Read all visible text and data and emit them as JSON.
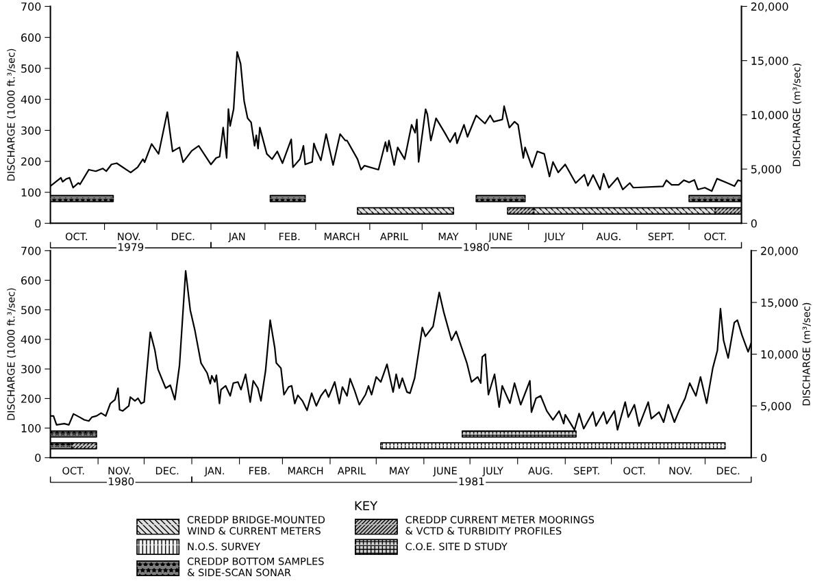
{
  "chart_data": [
    {
      "type": "line",
      "ylabel": "DISCHARGE (1000 ft.³/sec)",
      "y2label": "DISCHARGE (m³/sec)",
      "xlim": [
        "1979-10-01",
        "1980-10-31"
      ],
      "xticks": [
        {
          "value": "1979-10-16",
          "label": "OCT."
        },
        {
          "value": "1979-11-01",
          "label": null
        },
        {
          "value": "1979-11-15",
          "label": "NOV."
        },
        {
          "value": "1979-12-01",
          "label": null
        },
        {
          "value": "1979-12-16",
          "label": "DEC."
        },
        {
          "value": "1980-01-01",
          "label": null
        },
        {
          "value": "1980-01-16",
          "label": "JAN"
        },
        {
          "value": "1980-02-01",
          "label": null
        },
        {
          "value": "1980-02-15",
          "label": "FEB."
        },
        {
          "value": "1980-03-01",
          "label": null
        },
        {
          "value": "1980-03-16",
          "label": "MARCH"
        },
        {
          "value": "1980-04-01",
          "label": null
        },
        {
          "value": "1980-04-15",
          "label": "APRIL"
        },
        {
          "value": "1980-05-01",
          "label": null
        },
        {
          "value": "1980-05-16",
          "label": "MAY"
        },
        {
          "value": "1980-06-01",
          "label": null
        },
        {
          "value": "1980-06-15",
          "label": "JUNE"
        },
        {
          "value": "1980-07-01",
          "label": null
        },
        {
          "value": "1980-07-16",
          "label": "JULY"
        },
        {
          "value": "1980-08-01",
          "label": null
        },
        {
          "value": "1980-08-16",
          "label": "AUG."
        },
        {
          "value": "1980-09-01",
          "label": null
        },
        {
          "value": "1980-09-15",
          "label": "SEPT."
        },
        {
          "value": "1980-10-01",
          "label": null
        },
        {
          "value": "1980-10-16",
          "label": "OCT."
        }
      ],
      "ylim": [
        0,
        700
      ],
      "yticks": [
        0,
        100,
        200,
        300,
        400,
        500,
        600,
        700
      ],
      "y2lim": [
        0,
        20000
      ],
      "y2ticks": [
        0,
        {
          "value": 5000,
          "label": "5,000"
        },
        {
          "value": 10000,
          "label": "10,000"
        },
        {
          "value": 15000,
          "label": "15,000"
        },
        {
          "value": 20000,
          "label": "20,000"
        }
      ],
      "annotations": [
        "1979",
        "1980"
      ],
      "series": [
        {
          "color": "#000000",
          "x": [
            "1979-10-01",
            "1979-10-07",
            "1979-10-08",
            "1979-10-10",
            "1979-10-12",
            "1979-10-14",
            "1979-10-17",
            "1979-10-18",
            "1979-10-23",
            "1979-10-27",
            "1979-10-31",
            "1979-11-02",
            "1979-11-05",
            "1979-11-08",
            "1979-11-16",
            "1979-11-20",
            "1979-11-23",
            "1979-11-24",
            "1979-11-28",
            "1979-12-02",
            "1979-12-07",
            "1979-12-10",
            "1979-12-14",
            "1979-12-16",
            "1979-12-21",
            "1979-12-25",
            "1980-01-01",
            "1980-01-04",
            "1980-01-06",
            "1980-01-08",
            "1980-01-10",
            "1980-01-11",
            "1980-01-12",
            "1980-01-14",
            "1980-01-16",
            "1980-01-18",
            "1980-01-20",
            "1980-01-22",
            "1980-01-24",
            "1980-01-26",
            "1980-01-27",
            "1980-01-28",
            "1980-01-29",
            "1980-02-02",
            "1980-02-05",
            "1980-02-08",
            "1980-02-11",
            "1980-02-16",
            "1980-02-17",
            "1980-02-21",
            "1980-02-23",
            "1980-02-24",
            "1980-02-28",
            "1980-02-29",
            "1980-03-01",
            "1980-03-04",
            "1980-03-07",
            "1980-03-11",
            "1980-03-15",
            "1980-03-18",
            "1980-03-19",
            "1980-03-25",
            "1980-03-27",
            "1980-03-29",
            "1980-04-06",
            "1980-04-10",
            "1980-04-11",
            "1980-04-12",
            "1980-04-15",
            "1980-04-17",
            "1980-04-21",
            "1980-04-25",
            "1980-04-27",
            "1980-04-28",
            "1980-04-29",
            "1980-05-03",
            "1980-05-04",
            "1980-05-06",
            "1980-05-09",
            "1980-05-14",
            "1980-05-17",
            "1980-05-20",
            "1980-05-21",
            "1980-05-25",
            "1980-05-27",
            "1980-06-01",
            "1980-06-06",
            "1980-06-09",
            "1980-06-11",
            "1980-06-16",
            "1980-06-17",
            "1980-06-20",
            "1980-06-23",
            "1980-06-25",
            "1980-06-28",
            "1980-06-29",
            "1980-07-03",
            "1980-07-06",
            "1980-07-10",
            "1980-07-13",
            "1980-07-15",
            "1980-07-18",
            "1980-07-22",
            "1980-07-28",
            "1980-08-02",
            "1980-08-04",
            "1980-08-07",
            "1980-08-11",
            "1980-08-13",
            "1980-08-16",
            "1980-08-21",
            "1980-08-24",
            "1980-08-28",
            "1980-08-30",
            "1980-09-16",
            "1980-09-18",
            "1980-09-21",
            "1980-09-25",
            "1980-09-28",
            "1980-10-01",
            "1980-10-04",
            "1980-10-06",
            "1980-10-10",
            "1980-10-14",
            "1980-10-17",
            "1980-10-23",
            "1980-10-27",
            "1980-10-29",
            "1980-10-31"
          ],
          "values": [
            120,
            147,
            134,
            143,
            147,
            115,
            130,
            126,
            173,
            168,
            177,
            168,
            190,
            194,
            164,
            181,
            207,
            197,
            256,
            224,
            359,
            232,
            245,
            197,
            234,
            250,
            190,
            211,
            215,
            309,
            211,
            369,
            314,
            369,
            553,
            515,
            395,
            339,
            326,
            250,
            284,
            241,
            309,
            224,
            207,
            232,
            194,
            271,
            181,
            207,
            250,
            190,
            198,
            258,
            241,
            203,
            288,
            188,
            288,
            267,
            267,
            207,
            173,
            186,
            173,
            262,
            232,
            267,
            188,
            245,
            207,
            318,
            292,
            335,
            198,
            368,
            352,
            267,
            339,
            292,
            262,
            292,
            258,
            318,
            279,
            348,
            322,
            348,
            328,
            335,
            378,
            309,
            328,
            318,
            211,
            245,
            181,
            232,
            224,
            151,
            198,
            164,
            190,
            130,
            157,
            121,
            156,
            109,
            160,
            115,
            147,
            109,
            130,
            115,
            119,
            139,
            124,
            124,
            139,
            132,
            140,
            109,
            115,
            104,
            144,
            130,
            120,
            139,
            136
          ]
        },
        {
          "color": "#808080",
          "x": [
            "1979-10-01",
            "1979-11-06",
            null,
            "1980-02-04",
            "1980-02-24",
            null,
            "1980-06-01",
            "1980-06-29",
            null,
            "1980-10-01",
            "1980-10-31"
          ],
          "values": [
            80,
            80,
            null,
            80,
            80,
            null,
            80,
            80,
            null,
            80,
            80
          ],
          "lower": [
            70,
            70,
            null,
            70,
            70,
            null,
            70,
            70,
            null,
            70,
            70
          ],
          "upper": [
            90,
            90,
            null,
            90,
            90,
            null,
            90,
            90,
            null,
            90,
            90
          ]
        },
        {
          "name": "CREDDP BRIDGE-MOUNTED WIND & CURRENT METERS",
          "color": "#e0e0e0",
          "x": [
            "1980-03-25",
            "1980-05-19",
            null,
            "1980-07-04",
            "1980-10-16"
          ],
          "values": [
            40,
            40,
            null,
            40,
            40
          ],
          "lower": [
            30,
            30,
            null,
            30,
            30
          ],
          "upper": [
            50,
            50,
            null,
            50,
            50
          ]
        },
        {
          "color": "#bfbfbf",
          "x": [
            "1980-06-19",
            "1980-07-04",
            null,
            "1980-10-16",
            "1980-10-31"
          ],
          "values": [
            40,
            40,
            null,
            40,
            40
          ],
          "lower": [
            30,
            30,
            null,
            30,
            30
          ],
          "upper": [
            50,
            50,
            null,
            50,
            50
          ]
        }
      ]
    },
    {
      "type": "line",
      "ylabel": "DISCHARGE (1000 ft.³/sec)",
      "y2label": "DISCHARGE (m³/sec)",
      "legend": "bottom",
      "legend_title": "KEY",
      "xlim": [
        "1980-10-01",
        "1981-12-31"
      ],
      "xticks": [
        {
          "value": "1980-10-16",
          "label": "OCT."
        },
        {
          "value": "1980-11-01",
          "label": null
        },
        {
          "value": "1980-11-15",
          "label": "NOV."
        },
        {
          "value": "1980-12-01",
          "label": null
        },
        {
          "value": "1980-12-16",
          "label": "DEC."
        },
        {
          "value": "1981-01-01",
          "label": null
        },
        {
          "value": "1981-01-16",
          "label": "JAN."
        },
        {
          "value": "1981-02-01",
          "label": null
        },
        {
          "value": "1981-02-14",
          "label": "FEB."
        },
        {
          "value": "1981-03-01",
          "label": null
        },
        {
          "value": "1981-03-16",
          "label": "MARCH"
        },
        {
          "value": "1981-04-01",
          "label": null
        },
        {
          "value": "1981-04-15",
          "label": "APRIL"
        },
        {
          "value": "1981-05-01",
          "label": null
        },
        {
          "value": "1981-05-16",
          "label": "MAY"
        },
        {
          "value": "1981-06-01",
          "label": null
        },
        {
          "value": "1981-06-15",
          "label": "JUNE"
        },
        {
          "value": "1981-07-01",
          "label": null
        },
        {
          "value": "1981-07-16",
          "label": "JULY"
        },
        {
          "value": "1981-08-01",
          "label": null
        },
        {
          "value": "1981-08-16",
          "label": "AUG."
        },
        {
          "value": "1981-09-01",
          "label": null
        },
        {
          "value": "1981-09-15",
          "label": "SEPT."
        },
        {
          "value": "1981-10-01",
          "label": null
        },
        {
          "value": "1981-10-16",
          "label": "OCT."
        },
        {
          "value": "1981-11-01",
          "label": null
        },
        {
          "value": "1981-11-15",
          "label": "NOV."
        },
        {
          "value": "1981-12-01",
          "label": null
        },
        {
          "value": "1981-12-16",
          "label": "DEC."
        }
      ],
      "ylim": [
        0,
        700
      ],
      "yticks": [
        0,
        100,
        200,
        300,
        400,
        500,
        600,
        700
      ],
      "y2lim": [
        0,
        20000
      ],
      "y2ticks": [
        0,
        {
          "value": 5000,
          "label": "5,000"
        },
        {
          "value": 10000,
          "label": "10,000"
        },
        {
          "value": 15000,
          "label": "15,000"
        },
        {
          "value": 20000,
          "label": "20,000"
        }
      ],
      "annotations": [
        "1980",
        "1981"
      ],
      "series": [
        {
          "color": "#000000",
          "x": [
            "1980-10-01",
            "1980-10-03",
            "1980-10-05",
            "1980-10-10",
            "1980-10-13",
            "1980-10-16",
            "1980-10-20",
            "1980-10-23",
            "1980-10-26",
            "1980-10-28",
            "1980-10-31",
            "1980-11-03",
            "1980-11-06",
            "1980-11-09",
            "1980-11-12",
            "1980-11-14",
            "1980-11-15",
            "1980-11-17",
            "1980-11-21",
            "1980-11-22",
            "1980-11-25",
            "1980-11-27",
            "1980-11-29",
            "1980-12-01",
            "1980-12-05",
            "1980-12-08",
            "1980-12-10",
            "1980-12-15",
            "1980-12-18",
            "1980-12-21",
            "1980-12-24",
            "1980-12-28",
            "1980-12-31",
            "1981-01-03",
            "1981-01-07",
            "1981-01-11",
            "1981-01-13",
            "1981-01-14",
            "1981-01-16",
            "1981-01-17",
            "1981-01-19",
            "1981-01-20",
            "1981-01-23",
            "1981-01-26",
            "1981-01-28",
            "1981-01-31",
            "1981-02-02",
            "1981-02-05",
            "1981-02-08",
            "1981-02-10",
            "1981-02-13",
            "1981-02-15",
            "1981-02-18",
            "1981-02-21",
            "1981-02-24",
            "1981-02-25",
            "1981-02-28",
            "1981-03-02",
            "1981-03-05",
            "1981-03-07",
            "1981-03-09",
            "1981-03-11",
            "1981-03-14",
            "1981-03-17",
            "1981-03-20",
            "1981-03-23",
            "1981-03-26",
            "1981-03-29",
            "1981-03-31",
            "1981-04-04",
            "1981-04-07",
            "1981-04-09",
            "1981-04-12",
            "1981-04-14",
            "1981-04-17",
            "1981-04-20",
            "1981-04-24",
            "1981-04-26",
            "1981-04-28",
            "1981-05-01",
            "1981-05-04",
            "1981-05-08",
            "1981-05-12",
            "1981-05-14",
            "1981-05-16",
            "1981-05-18",
            "1981-05-21",
            "1981-05-23",
            "1981-05-26",
            "1981-05-31",
            "1981-06-02",
            "1981-06-07",
            "1981-06-11",
            "1981-06-14",
            "1981-06-19",
            "1981-06-22",
            "1981-06-29",
            "1981-07-02",
            "1981-07-06",
            "1981-07-08",
            "1981-07-09",
            "1981-07-11",
            "1981-07-13",
            "1981-07-17",
            "1981-07-20",
            "1981-07-22",
            "1981-07-27",
            "1981-07-30",
            "1981-08-03",
            "1981-08-09",
            "1981-08-10",
            "1981-08-13",
            "1981-08-16",
            "1981-08-20",
            "1981-08-24",
            "1981-08-28",
            "1981-08-31",
            "1981-09-01",
            "1981-09-07",
            "1981-09-10",
            "1981-09-13",
            "1981-09-19",
            "1981-09-21",
            "1981-09-26",
            "1981-09-28",
            "1981-10-03",
            "1981-10-05",
            "1981-10-10",
            "1981-10-12",
            "1981-10-16",
            "1981-10-19",
            "1981-10-25",
            "1981-10-27",
            "1981-11-01",
            "1981-11-04",
            "1981-11-07",
            "1981-11-11",
            "1981-11-14",
            "1981-11-18",
            "1981-11-21",
            "1981-11-25",
            "1981-11-28",
            "1981-12-02",
            "1981-12-06",
            "1981-12-09",
            "1981-12-11",
            "1981-12-13",
            "1981-12-16",
            "1981-12-20",
            "1981-12-22",
            "1981-12-25",
            "1981-12-29",
            "1981-12-31"
          ],
          "values": [
            141,
            141,
            111,
            115,
            111,
            148,
            137,
            128,
            124,
            137,
            141,
            151,
            141,
            183,
            196,
            235,
            162,
            158,
            175,
            205,
            192,
            201,
            183,
            188,
            424,
            363,
            299,
            235,
            245,
            196,
            312,
            632,
            499,
            431,
            320,
            286,
            250,
            277,
            256,
            279,
            183,
            230,
            243,
            209,
            252,
            256,
            230,
            282,
            188,
            260,
            235,
            192,
            294,
            465,
            371,
            320,
            303,
            213,
            239,
            243,
            183,
            211,
            192,
            160,
            218,
            175,
            209,
            230,
            205,
            256,
            183,
            239,
            209,
            267,
            226,
            179,
            213,
            243,
            213,
            273,
            256,
            316,
            222,
            282,
            235,
            269,
            222,
            218,
            269,
            440,
            410,
            444,
            559,
            491,
            397,
            427,
            320,
            256,
            273,
            252,
            341,
            350,
            213,
            282,
            171,
            243,
            184,
            252,
            179,
            260,
            154,
            201,
            209,
            158,
            128,
            158,
            115,
            145,
            94,
            149,
            98,
            154,
            107,
            154,
            115,
            158,
            94,
            188,
            137,
            179,
            107,
            188,
            132,
            154,
            120,
            179,
            120,
            158,
            201,
            252,
            209,
            273,
            184,
            303,
            363,
            504,
            397,
            337,
            457,
            465,
            414,
            358,
            388
          ]
        },
        {
          "name": "N.O.S. SURVEY",
          "color": "#f0f0f0",
          "x": [
            "1981-05-04",
            "1981-12-14"
          ],
          "values": [
            40,
            40
          ],
          "lower": [
            30,
            30
          ],
          "upper": [
            50,
            50
          ]
        },
        {
          "name": "CREDDP BOTTOM SAMPLES & SIDE-SCAN SONAR",
          "color": "#808080",
          "x": [
            "1980-10-01",
            "1980-10-31",
            null,
            "1980-10-01",
            "1980-10-15"
          ],
          "values": [
            80,
            80,
            null,
            40,
            40
          ],
          "lower": [
            70,
            70,
            null,
            30,
            30
          ],
          "upper": [
            90,
            90,
            null,
            50,
            50
          ]
        },
        {
          "name": "CREDDP CURRENT METER MOORINGS & VCTD & TURBIDITY PROFILES",
          "color": "#bfbfbf",
          "x": [
            "1980-10-15",
            "1980-10-31"
          ],
          "values": [
            40,
            40
          ],
          "lower": [
            30,
            30
          ],
          "upper": [
            50,
            50
          ]
        },
        {
          "name": "C.O.E. SITE D STUDY",
          "color": "#d0d0d0",
          "x": [
            "1981-06-26",
            "1981-09-08"
          ],
          "values": [
            80,
            80
          ],
          "lower": [
            70,
            70
          ],
          "upper": [
            90,
            90
          ]
        }
      ]
    }
  ]
}
